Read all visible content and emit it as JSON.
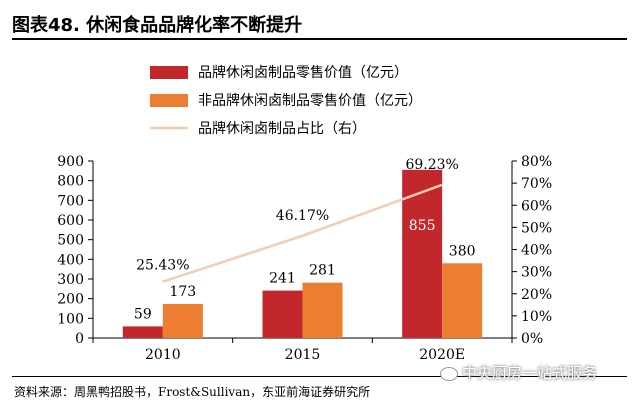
{
  "title": "图表48. 休闲食品品牌化率不断提升",
  "colors": {
    "brand_bar": "#c1272d",
    "nonbrand_bar": "#ed7d31",
    "ratio_line": "#f8cbad"
  },
  "legend": [
    {
      "label": "品牌休闲卤制品零售价值（亿元）",
      "kind": "bar",
      "color": "#c1272d"
    },
    {
      "label": "非品牌休闲卤制品零售价值（亿元）",
      "kind": "bar",
      "color": "#ed7d31"
    },
    {
      "label": "品牌休闲卤制品占比（右）",
      "kind": "line",
      "color": "#f8cbad"
    }
  ],
  "chart_data": {
    "type": "bar",
    "categories": [
      "2010",
      "2015",
      "2020E"
    ],
    "series": [
      {
        "name": "品牌休闲卤制品零售价值（亿元）",
        "type": "bar",
        "axis": "left",
        "values": [
          59,
          241,
          855
        ],
        "labels": [
          "59",
          "241",
          "855"
        ]
      },
      {
        "name": "非品牌休闲卤制品零售价值（亿元）",
        "type": "bar",
        "axis": "left",
        "values": [
          173,
          281,
          380
        ],
        "labels": [
          "173",
          "281",
          "380"
        ]
      },
      {
        "name": "品牌休闲卤制品占比（右）",
        "type": "line",
        "axis": "right",
        "values": [
          25.43,
          46.17,
          69.23
        ],
        "labels": [
          "25.43%",
          "46.17%",
          "69.23%"
        ]
      }
    ],
    "y_left": {
      "ylim": [
        0,
        900
      ],
      "ticks": [
        "0",
        "100",
        "200",
        "300",
        "400",
        "500",
        "600",
        "700",
        "800",
        "900"
      ]
    },
    "y_right": {
      "ylim": [
        0,
        80
      ],
      "ticks": [
        "0%",
        "10%",
        "20%",
        "30%",
        "40%",
        "50%",
        "60%",
        "70%",
        "80%"
      ]
    },
    "xlabel": "",
    "ylabel": "",
    "grid": false,
    "legend_position": "top-left"
  },
  "source": "资料来源：周黑鸭招股书，Frost&Sullivan，东亚前海证券研究所",
  "watermark": "中央厨房一站式服务"
}
